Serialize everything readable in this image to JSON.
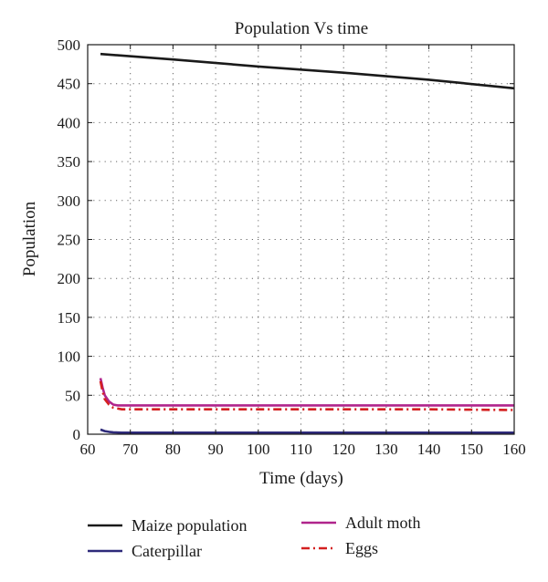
{
  "chart_data": {
    "type": "line",
    "title": "Population Vs time",
    "xlabel": "Time (days)",
    "ylabel": "Population",
    "xlim": [
      60,
      160
    ],
    "ylim": [
      0,
      500
    ],
    "xticks": [
      60,
      70,
      80,
      90,
      100,
      110,
      120,
      130,
      140,
      150,
      160
    ],
    "yticks": [
      0,
      50,
      100,
      150,
      200,
      250,
      300,
      350,
      400,
      450,
      500
    ],
    "grid": true,
    "grid_style": "dotted",
    "legend_position": "bottom",
    "series": [
      {
        "name": "Maize population",
        "color": "#1a1a1a",
        "style": "solid",
        "points": [
          [
            63,
            488
          ],
          [
            80,
            481
          ],
          [
            100,
            472
          ],
          [
            120,
            464
          ],
          [
            140,
            455
          ],
          [
            160,
            444
          ]
        ]
      },
      {
        "name": "Caterpillar",
        "color": "#2e2a7a",
        "style": "solid",
        "points": [
          [
            63,
            6
          ],
          [
            64,
            4
          ],
          [
            65,
            3
          ],
          [
            66,
            2.5
          ],
          [
            68,
            2
          ],
          [
            80,
            2
          ],
          [
            100,
            2
          ],
          [
            120,
            2
          ],
          [
            140,
            2
          ],
          [
            160,
            2
          ]
        ]
      },
      {
        "name": "Adult moth",
        "color": "#b0248c",
        "style": "solid",
        "points": [
          [
            63,
            72
          ],
          [
            63.5,
            60
          ],
          [
            64,
            50
          ],
          [
            65,
            42
          ],
          [
            66,
            38
          ],
          [
            67,
            37
          ],
          [
            70,
            37
          ],
          [
            90,
            37
          ],
          [
            110,
            37
          ],
          [
            130,
            37
          ],
          [
            160,
            37
          ]
        ]
      },
      {
        "name": "Eggs",
        "color": "#d42020",
        "style": "dashdot",
        "points": [
          [
            63,
            68
          ],
          [
            63.5,
            55
          ],
          [
            64,
            45
          ],
          [
            65,
            38
          ],
          [
            66,
            34
          ],
          [
            68,
            32
          ],
          [
            80,
            32
          ],
          [
            100,
            32
          ],
          [
            120,
            32
          ],
          [
            140,
            32
          ],
          [
            160,
            31
          ]
        ]
      }
    ]
  }
}
